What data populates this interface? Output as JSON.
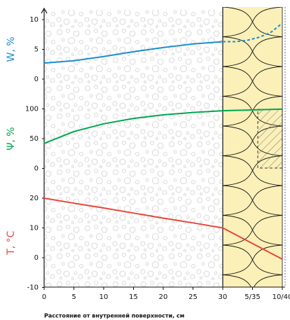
{
  "chart_data": [
    {
      "type": "line",
      "y_label": "W, %",
      "label_color": "#1a8fd0",
      "x": [
        0,
        5,
        10,
        15,
        20,
        25,
        30,
        32,
        34,
        36,
        38,
        40
      ],
      "series": [
        {
          "color": "#1a8fd0",
          "values": [
            2.7,
            3.1,
            3.8,
            4.6,
            5.3,
            5.9,
            6.3,
            null,
            null,
            null,
            null,
            null
          ]
        },
        {
          "color": "#1a8fd0",
          "dashed": true,
          "values": [
            null,
            null,
            null,
            null,
            null,
            null,
            6.3,
            6.3,
            6.5,
            7.0,
            7.8,
            9.4
          ]
        }
      ],
      "xlim": [
        0,
        40
      ],
      "ylim": [
        0,
        10
      ],
      "yticks": [
        0,
        5,
        10
      ]
    },
    {
      "type": "line",
      "y_label": "Ψ, %",
      "label_color": "#00a650",
      "x": [
        0,
        5,
        10,
        15,
        20,
        25,
        30,
        32,
        34,
        36,
        38,
        40
      ],
      "series": [
        {
          "color": "#00a650",
          "values": [
            42,
            62,
            75,
            84,
            90,
            94,
            97,
            97.5,
            98,
            98.5,
            99,
            99.5
          ]
        }
      ],
      "xlim": [
        0,
        40
      ],
      "ylim": [
        0,
        100
      ],
      "yticks": [
        0,
        50,
        100
      ]
    },
    {
      "type": "line",
      "y_label": "T, °C",
      "label_color": "#e8463a",
      "x_label": "Расстояние от внутренней поверхности, см",
      "x": [
        0,
        5,
        10,
        15,
        20,
        25,
        30,
        32,
        34,
        36,
        38,
        40
      ],
      "series": [
        {
          "color": "#e8463a",
          "values": [
            20,
            18.3,
            16.7,
            15,
            13.3,
            11.7,
            10,
            7.9,
            5.8,
            3.7,
            1.6,
            -0.5
          ]
        }
      ],
      "xlim": [
        0,
        40
      ],
      "ylim": [
        -10,
        20
      ],
      "yticks": [
        -10,
        0,
        10,
        20
      ],
      "xticks": [
        0,
        5,
        10,
        15,
        20,
        25,
        30,
        {
          "value": 35,
          "label": "5/35"
        },
        {
          "value": 40,
          "label": "10/40"
        }
      ]
    }
  ]
}
